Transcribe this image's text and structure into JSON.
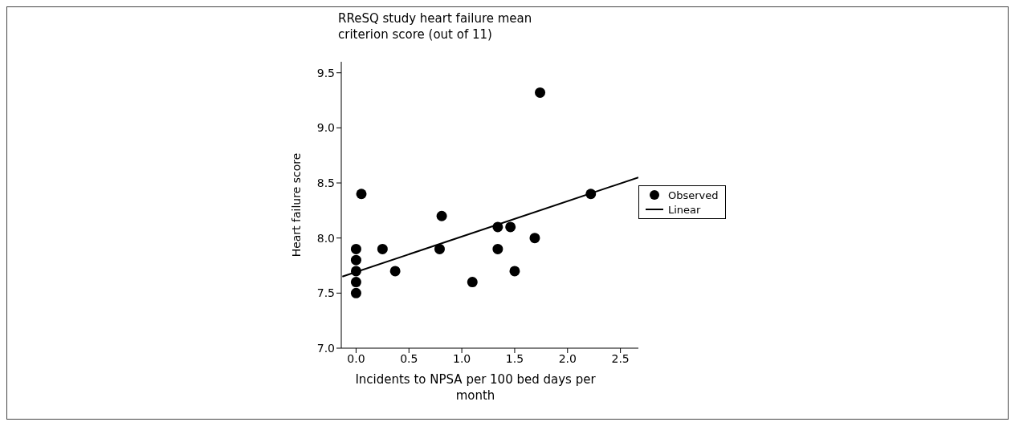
{
  "chart_data": {
    "type": "scatter",
    "title": "RReSQ study heart failure mean criterion score (out of 11)",
    "xlabel": "Incidents to NPSA per 100 bed days per month",
    "ylabel": "Heart failure score",
    "xlim": [
      -0.14,
      2.67
    ],
    "ylim": [
      7.0,
      9.6
    ],
    "xticks": [
      {
        "value": 0,
        "label": "0.0"
      },
      0.5,
      {
        "value": 1,
        "label": "1.0"
      },
      1.5,
      {
        "value": 2,
        "label": "2.0"
      },
      2.5
    ],
    "yticks": [
      {
        "value": 7,
        "label": "7.0"
      },
      7.5,
      {
        "value": 8,
        "label": "8.0"
      },
      8.5,
      {
        "value": 9,
        "label": "9.0"
      },
      9.5
    ],
    "legend": "right",
    "series": [
      {
        "name": "Observed",
        "type": "scatter",
        "marker": "circle",
        "color": "#000000",
        "x": [
          0,
          0,
          0,
          0,
          0,
          0.05,
          0.25,
          0.37,
          0.79,
          0.81,
          1.1,
          1.34,
          1.34,
          1.46,
          1.5,
          1.69,
          1.74,
          2.22
        ],
        "values": [
          7.5,
          7.6,
          7.7,
          7.8,
          7.9,
          8.4,
          7.9,
          7.7,
          7.9,
          8.2,
          7.6,
          8.1,
          7.9,
          8.1,
          7.7,
          8.0,
          9.32,
          8.4
        ]
      },
      {
        "name": "Linear",
        "type": "line",
        "marker": "none",
        "line_style": "solid",
        "color": "#000000",
        "x": [
          -0.13,
          2.67
        ],
        "values": [
          7.65,
          8.55
        ]
      }
    ]
  }
}
